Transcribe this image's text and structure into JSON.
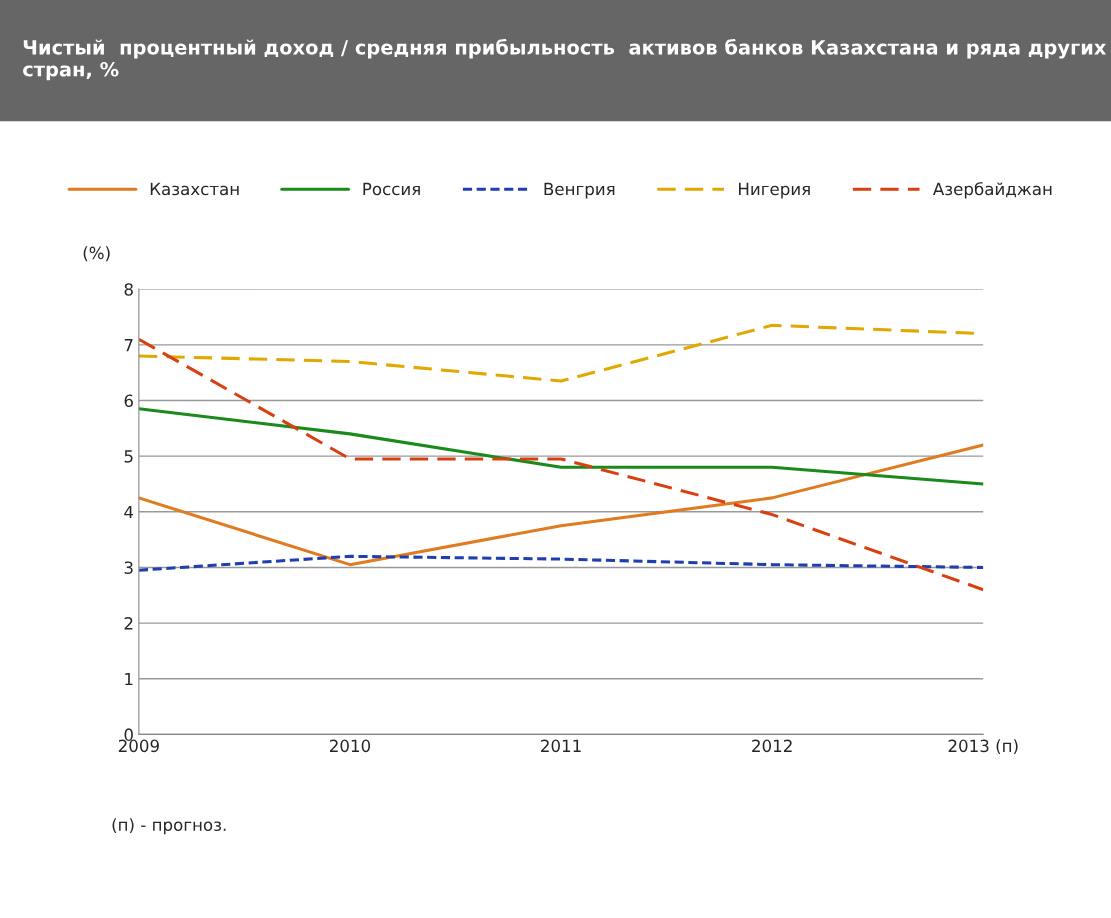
{
  "chart_data": {
    "type": "line",
    "title": "Чистый  процентный доход / средняя прибыльность  активов банков Казахстана и ряда других стран, %",
    "ylabel": "(%)",
    "categories": [
      "2009",
      "2010",
      "2011",
      "2012",
      "2013 (п)"
    ],
    "series": [
      {
        "name": "Казахстан",
        "color": "#e07b20",
        "line_style": "solid",
        "values": [
          4.25,
          3.05,
          3.75,
          4.25,
          5.2
        ]
      },
      {
        "name": "Россия",
        "color": "#1a8a1a",
        "line_style": "solid",
        "values": [
          5.85,
          5.4,
          4.8,
          4.8,
          4.5
        ]
      },
      {
        "name": "Венгрия",
        "color": "#1f3fb0",
        "line_style": "dotted",
        "values": [
          2.95,
          3.2,
          3.15,
          3.05,
          3.0
        ]
      },
      {
        "name": "Нигерия",
        "color": "#e0a800",
        "line_style": "dashed",
        "values": [
          6.8,
          6.7,
          6.35,
          7.35,
          7.2
        ]
      },
      {
        "name": "Азербайджан",
        "color": "#d84010",
        "line_style": "dashed",
        "values": [
          7.1,
          4.95,
          4.95,
          3.95,
          2.6
        ]
      }
    ],
    "ylim": [
      0,
      8
    ],
    "yticks": [
      0,
      1,
      2,
      3,
      4,
      5,
      6,
      7,
      8
    ],
    "grid": "y",
    "legend": "top",
    "marker": "none",
    "annotations": [
      "(п) - прогноз."
    ]
  }
}
